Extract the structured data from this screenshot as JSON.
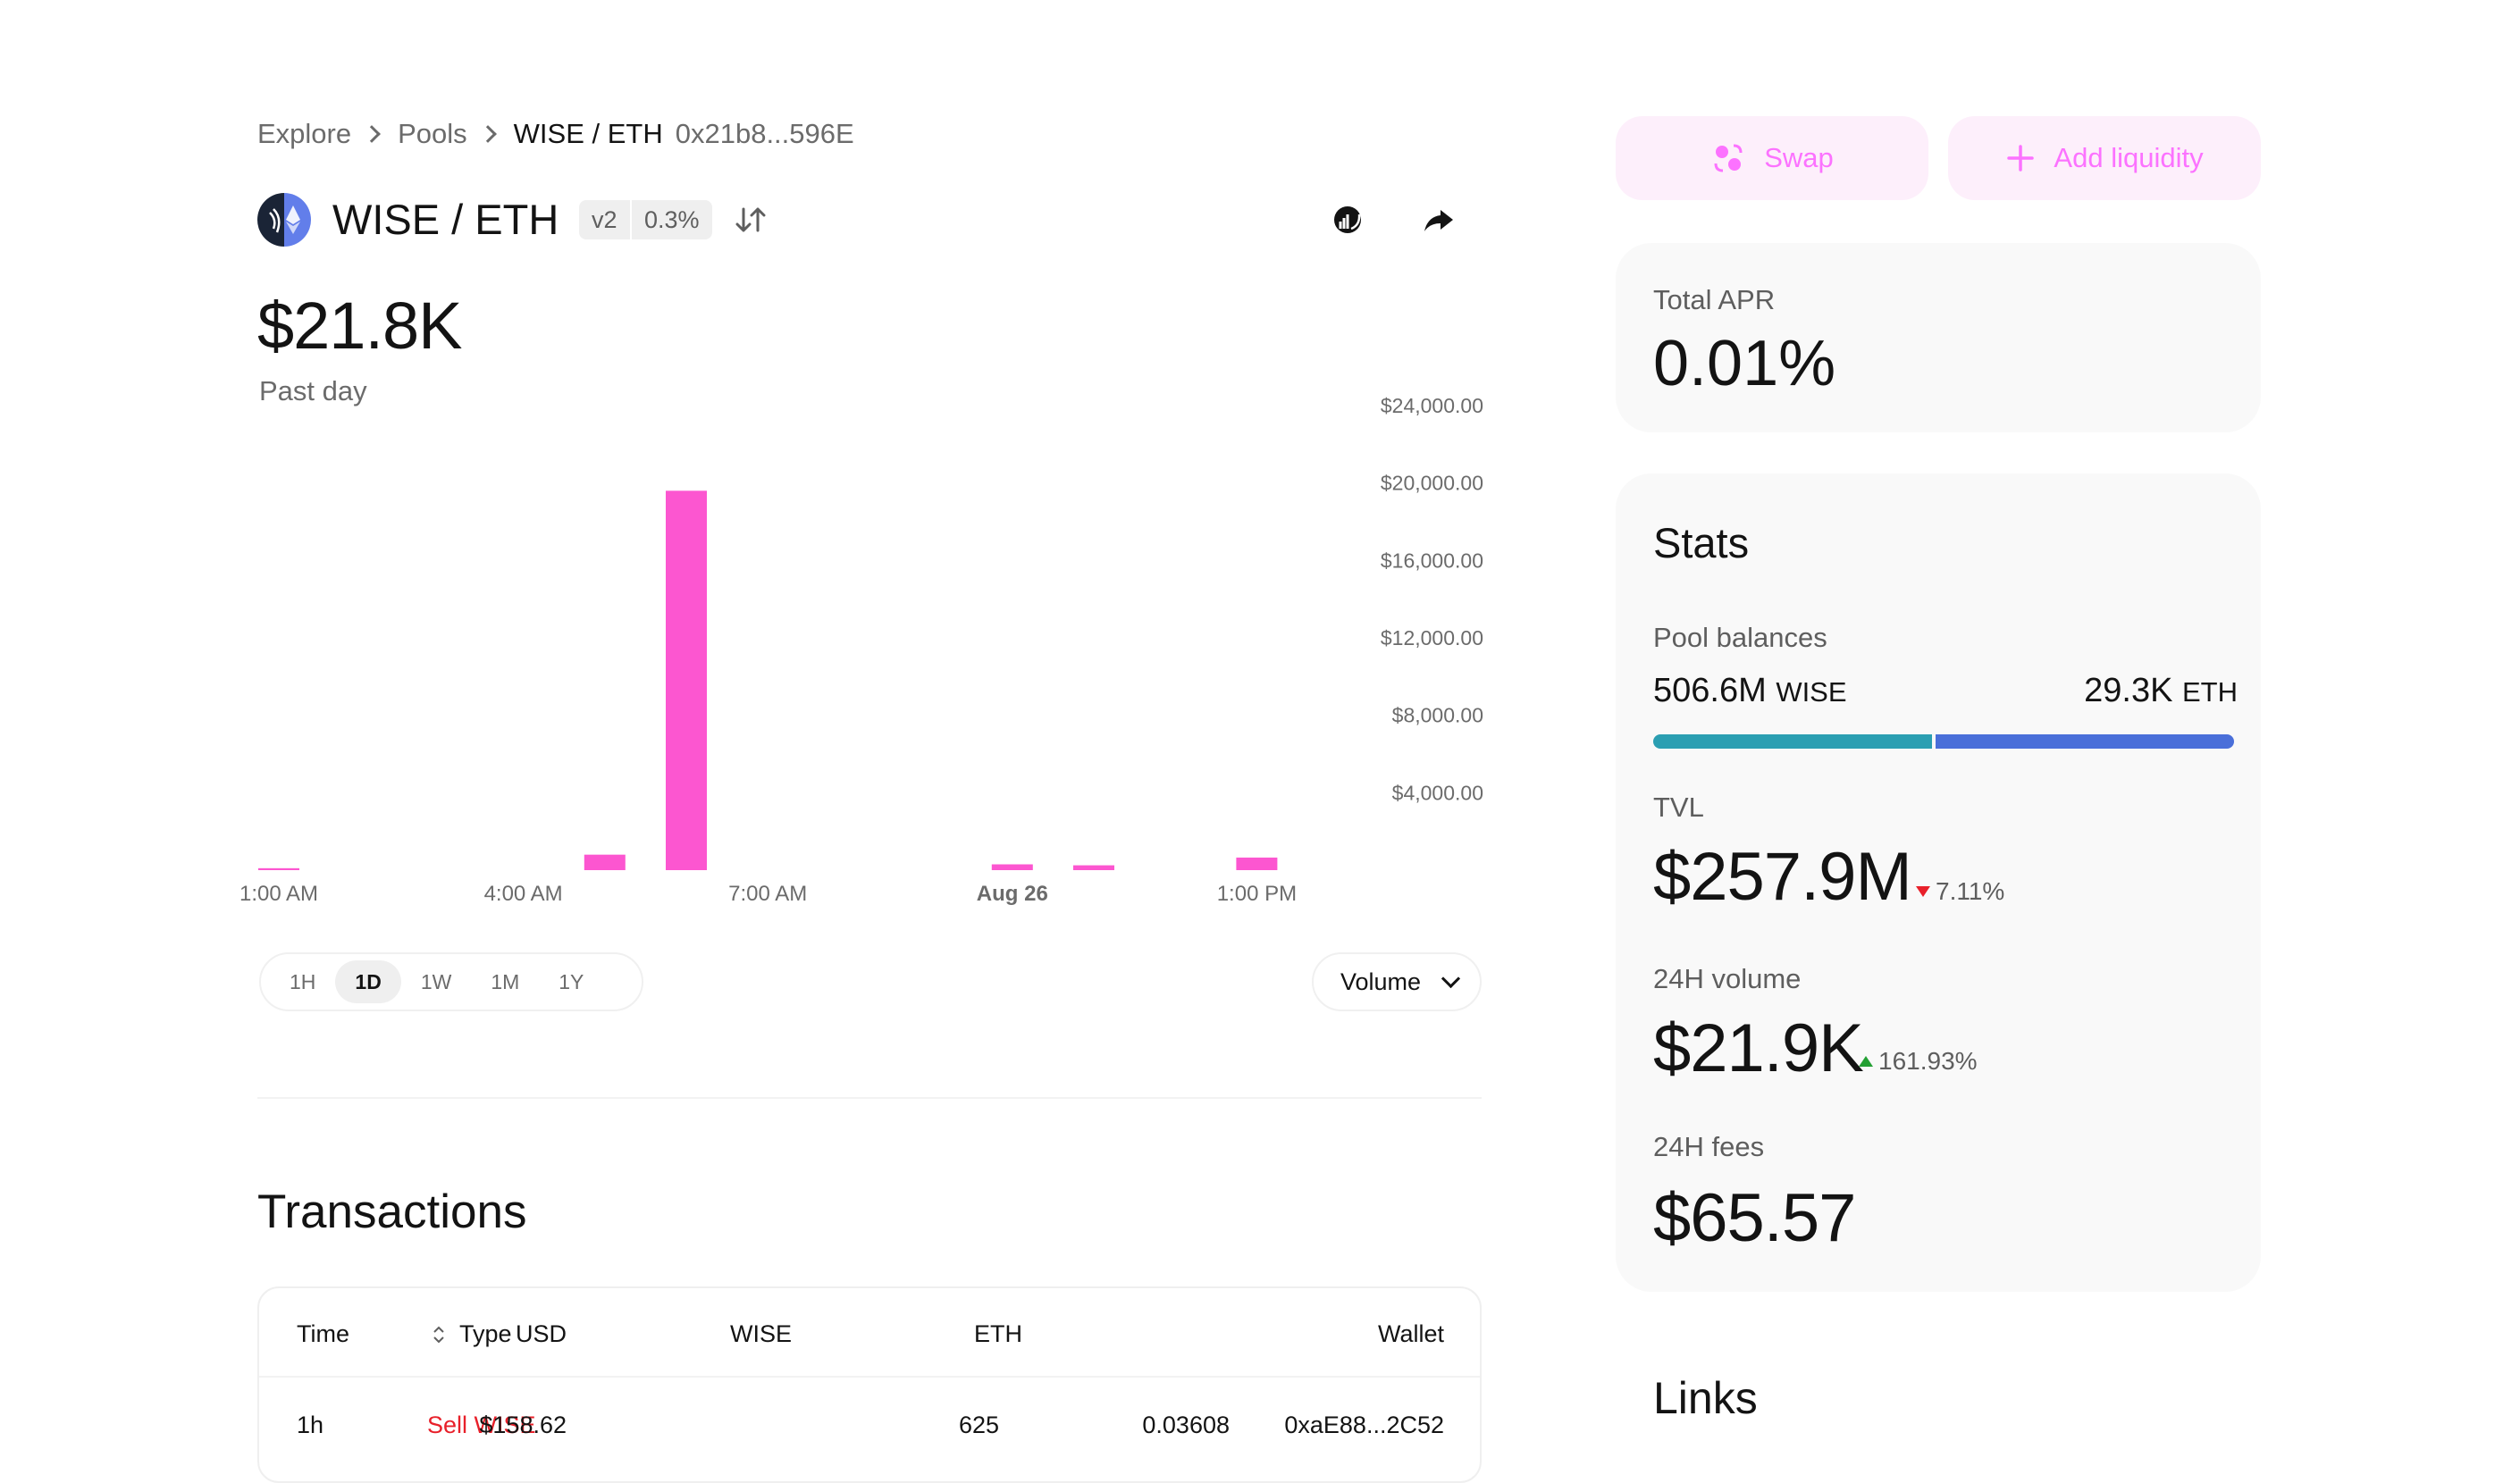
{
  "breadcrumb": {
    "explore": "Explore",
    "pools": "Pools",
    "current": "WISE / ETH",
    "address": "0x21b8...596E"
  },
  "pool": {
    "pair": "WISE / ETH",
    "version": "v2",
    "fee_tier": "0.3%",
    "logo_icon": "wise-eth-pair-logo",
    "actions": [
      "swap-direction-icon",
      "etherscan-icon",
      "share-icon"
    ]
  },
  "price": {
    "value": "$21.8K",
    "period": "Past day"
  },
  "chart_data": {
    "type": "bar",
    "title": "",
    "xlabel": "",
    "ylabel": "",
    "color": "#fc56d0",
    "ylim": [
      0,
      24000
    ],
    "y_ticks": [
      "$24,000.00",
      "$20,000.00",
      "$16,000.00",
      "$12,000.00",
      "$8,000.00",
      "$4,000.00"
    ],
    "y_tick_values": [
      24000,
      20000,
      16000,
      12000,
      8000,
      4000
    ],
    "x_tick_labels": [
      "1:00 AM",
      "4:00 AM",
      "7:00 AM",
      "Aug 26",
      "1:00 PM"
    ],
    "x_tick_hours": [
      1,
      4,
      7,
      10,
      13
    ],
    "bold_ticks": [
      "Aug 26"
    ],
    "bars": [
      {
        "hour": 1,
        "value": 100
      },
      {
        "hour": 5,
        "value": 800
      },
      {
        "hour": 6,
        "value": 19600
      },
      {
        "hour": 10,
        "value": 300
      },
      {
        "hour": 11,
        "value": 250
      },
      {
        "hour": 13,
        "value": 650
      }
    ],
    "grid": false
  },
  "timeframes": {
    "options": [
      "1H",
      "1D",
      "1W",
      "1M",
      "1Y"
    ],
    "selected": "1D"
  },
  "chart_mode": "Volume",
  "transactions": {
    "title": "Transactions",
    "columns": [
      "Time",
      "Type",
      "USD",
      "WISE",
      "ETH",
      "Wallet"
    ],
    "rows": [
      {
        "time": "1h",
        "type": "Sell WISE",
        "usd": "$158.62",
        "wise": "625",
        "eth": "0.03608",
        "wallet": "0xaE88...2C52"
      }
    ]
  },
  "actions": {
    "swap": "Swap",
    "add_liquidity": "Add liquidity"
  },
  "apr": {
    "label": "Total APR",
    "value": "0.01%"
  },
  "stats": {
    "title": "Stats",
    "pool_balances_label": "Pool balances",
    "balance_left_amount": "506.6M",
    "balance_left_token": "WISE",
    "balance_right_amount": "29.3K",
    "balance_right_token": "ETH",
    "balance_share_left": 0.483,
    "bar_colors": {
      "left": "#2b9fb2",
      "right": "#4a6fd9"
    },
    "tvl_label": "TVL",
    "tvl_value": "$257.9M",
    "tvl_change": "7.11%",
    "tvl_direction": "down",
    "volume_label": "24H volume",
    "volume_value": "$21.9K",
    "volume_change": "161.93%",
    "volume_direction": "up",
    "fees_label": "24H fees",
    "fees_value": "$65.57"
  },
  "links": {
    "title": "Links"
  },
  "colors": {
    "accent": "#fc72ff",
    "accent_bg": "#fdeffb",
    "negative": "#e8202a",
    "positive": "#24a034"
  }
}
